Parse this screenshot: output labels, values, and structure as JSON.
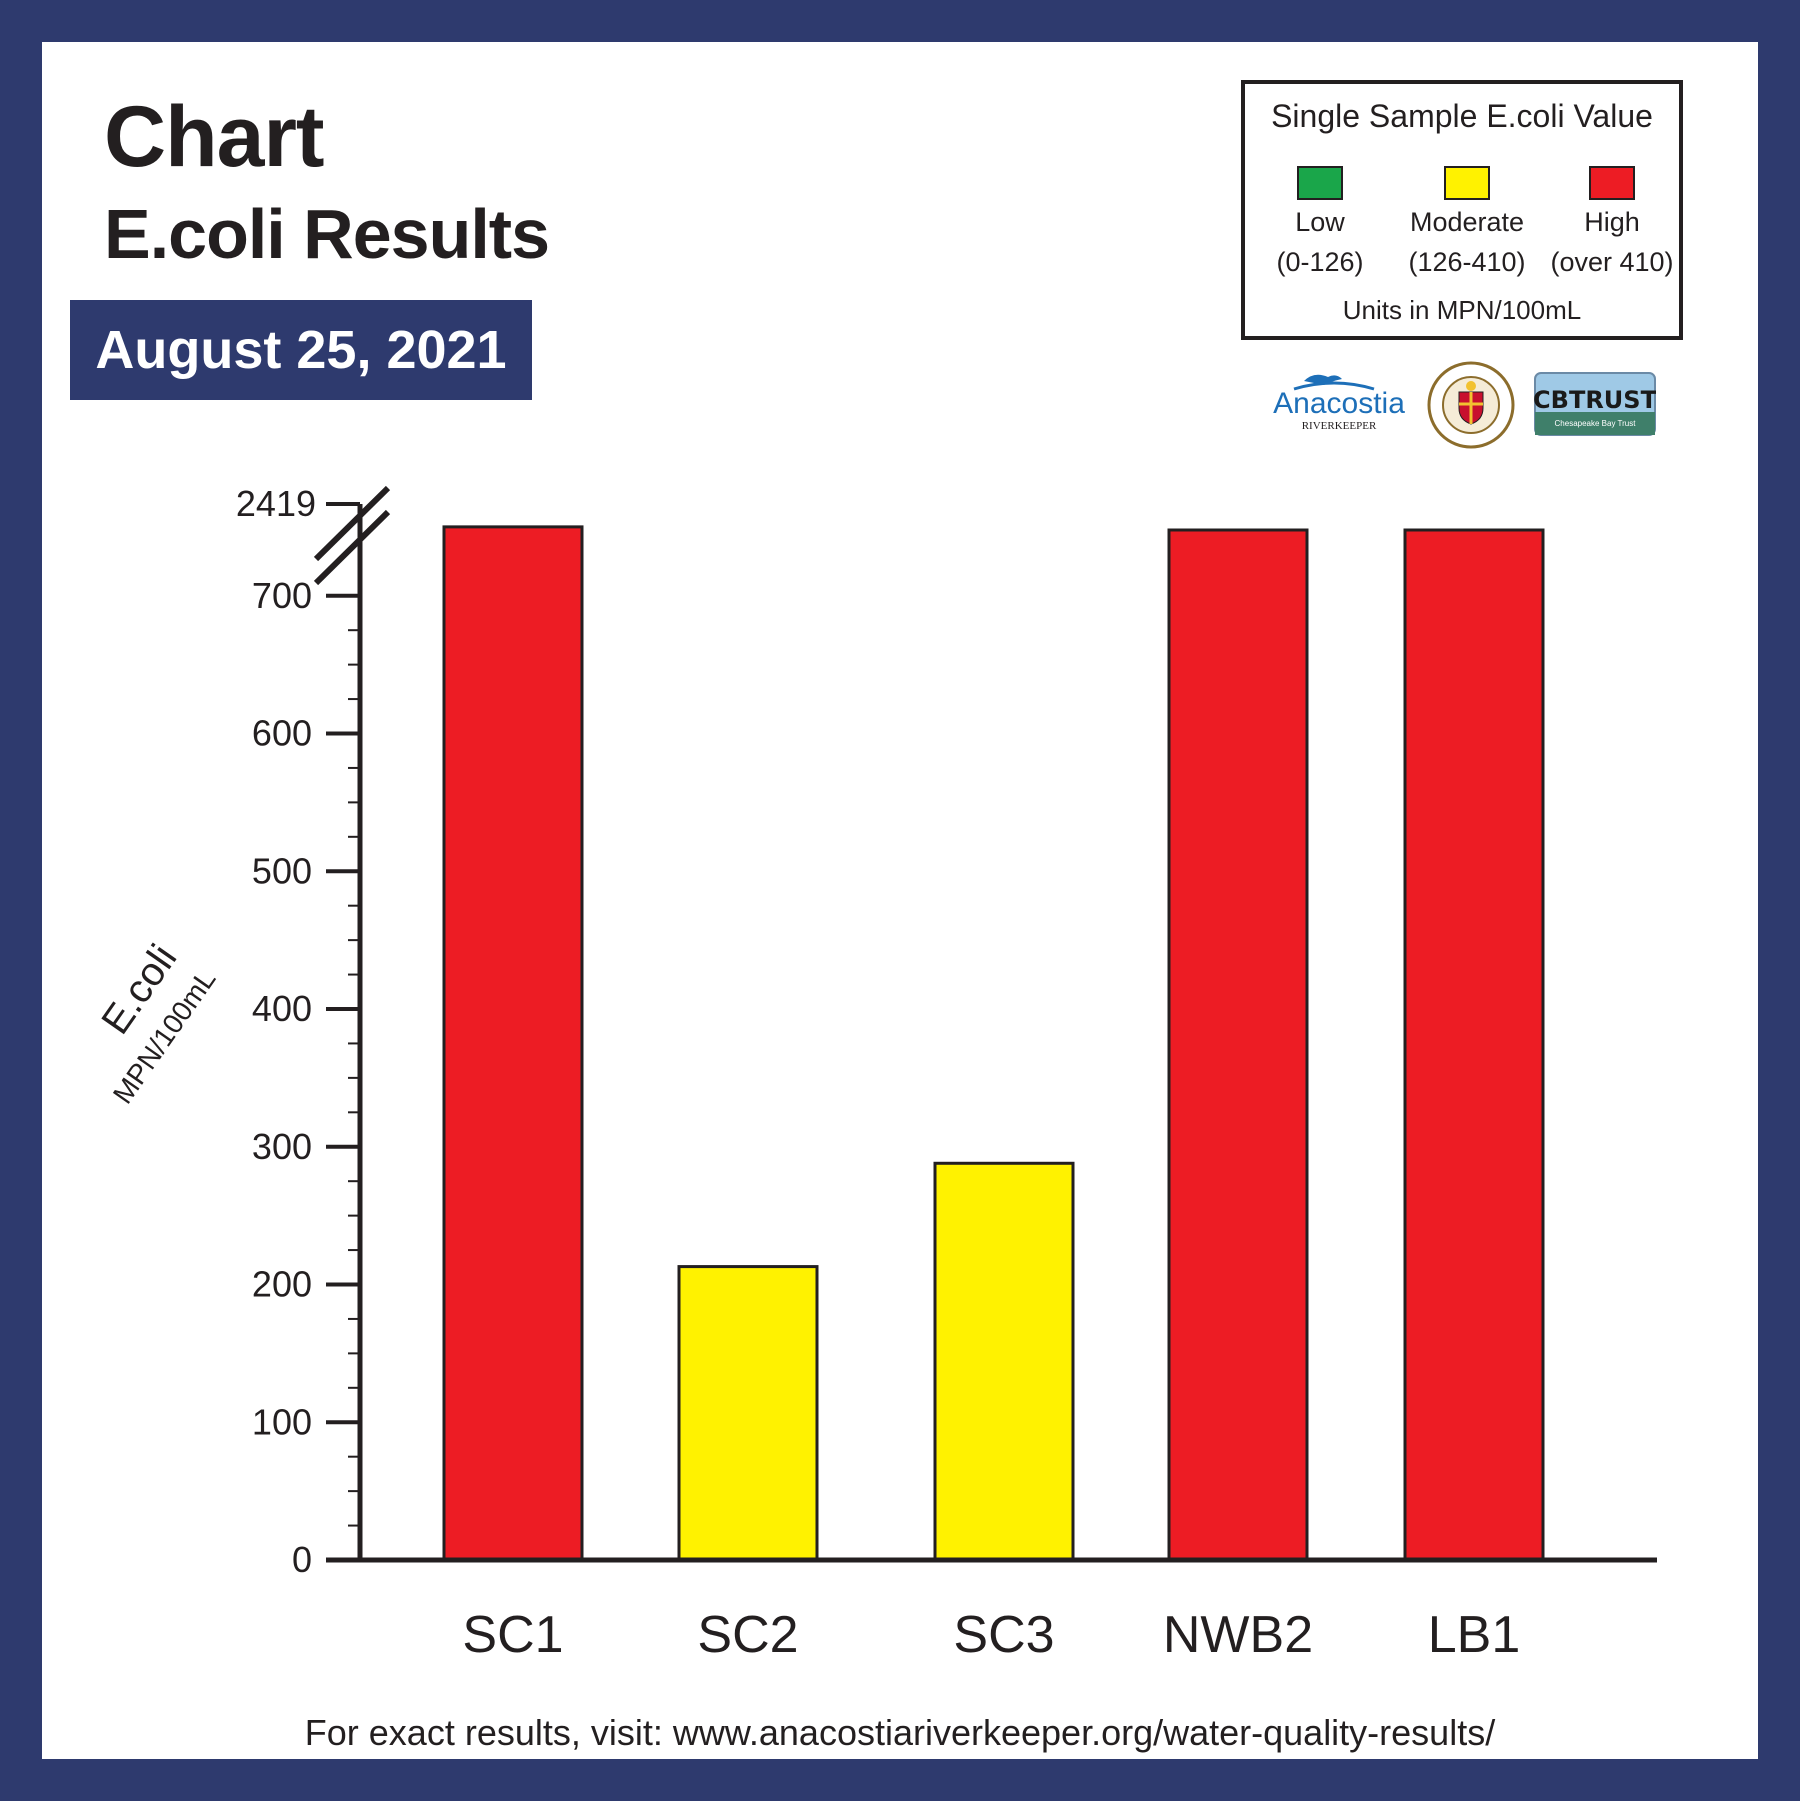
{
  "title": "Chart",
  "subtitle": "E.coli Results",
  "date": "August 25, 2021",
  "legend": {
    "title": "Single Sample E.coli Value",
    "items": [
      {
        "label": "Low",
        "range": "(0-126)",
        "color": "#1aa64a"
      },
      {
        "label": "Moderate",
        "range": "(126-410)",
        "color": "#fff200"
      },
      {
        "label": "High",
        "range": "(over 410)",
        "color": "#ed1c24"
      }
    ],
    "units": "Units in MPN/100mL"
  },
  "logos": {
    "anacostia_text": "Anacostia",
    "anacostia_sub": "RIVERKEEPER",
    "seal_text": "MONTGOMERY COUNTY MARYLAND",
    "cbt_text": "CBTRUST",
    "cbt_sub": "Chesapeake Bay Trust"
  },
  "footer": "For exact results, visit: www.anacostiariverkeeper.org/water-quality-results/",
  "chart_data": {
    "type": "bar",
    "categories": [
      "SC1",
      "SC2",
      "SC3",
      "NWB2",
      "LB1"
    ],
    "values": [
      750,
      213,
      288,
      2419,
      2419
    ],
    "colors": [
      "#ed1c24",
      "#fff200",
      "#fff200",
      "#ed1c24",
      "#ed1c24"
    ],
    "ylabel": "E.coli",
    "ylabel_sub": "MPN/100mL",
    "yticks": [
      0,
      100,
      200,
      300,
      400,
      500,
      600,
      700
    ],
    "ymax_label": "2419",
    "ylim": [
      0,
      2419
    ],
    "axis_break": true,
    "grid": false
  }
}
